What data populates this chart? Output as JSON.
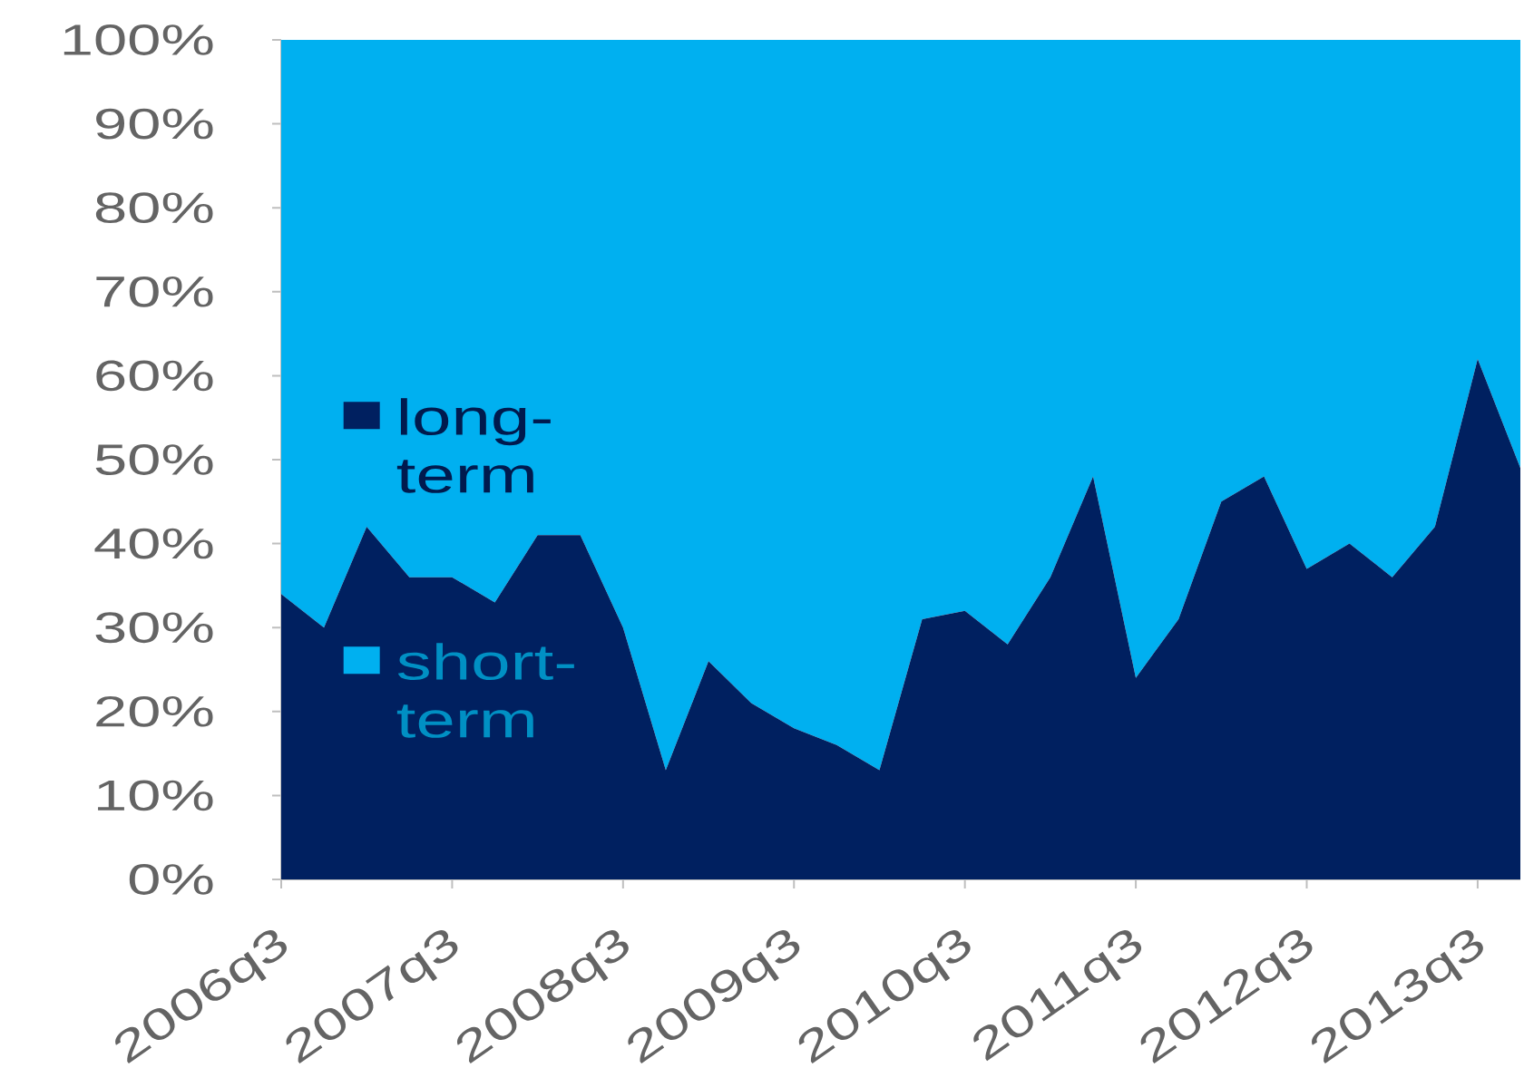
{
  "chart_data": {
    "type": "area",
    "stacked": true,
    "grid": false,
    "legend": "left",
    "categories": [
      "2006q3",
      null,
      null,
      null,
      "2007q3",
      null,
      null,
      null,
      "2008q3",
      null,
      null,
      null,
      "2009q3",
      null,
      null,
      null,
      "2010q3",
      null,
      null,
      null,
      "2011q3",
      null,
      null,
      null,
      "2012q3",
      null,
      null,
      null,
      "2013q3",
      null
    ],
    "series": [
      {
        "name": "long-term",
        "color": "#002060",
        "values": [
          34,
          30,
          42,
          36,
          36,
          33,
          41,
          41,
          30,
          13,
          26,
          21,
          18,
          16,
          13,
          31,
          32,
          28,
          36,
          48,
          24,
          31,
          45,
          48,
          37,
          40,
          36,
          42,
          62,
          49
        ]
      },
      {
        "name": "short-term",
        "color": "#00b0f0",
        "values": [
          66,
          70,
          58,
          64,
          64,
          67,
          59,
          59,
          70,
          87,
          74,
          79,
          82,
          84,
          87,
          69,
          68,
          72,
          64,
          52,
          76,
          69,
          55,
          52,
          63,
          60,
          64,
          58,
          38,
          51
        ]
      }
    ],
    "ylim": [
      0,
      100
    ],
    "yticks": [
      {
        "value": 0,
        "label": "0%"
      },
      {
        "value": 10,
        "label": "10%"
      },
      {
        "value": 20,
        "label": "20%"
      },
      {
        "value": 30,
        "label": "30%"
      },
      {
        "value": 40,
        "label": "40%"
      },
      {
        "value": 50,
        "label": "50%"
      },
      {
        "value": 60,
        "label": "60%"
      },
      {
        "value": 70,
        "label": "70%"
      },
      {
        "value": 80,
        "label": "80%"
      },
      {
        "value": 90,
        "label": "90%"
      },
      {
        "value": 100,
        "label": "100%"
      }
    ]
  }
}
